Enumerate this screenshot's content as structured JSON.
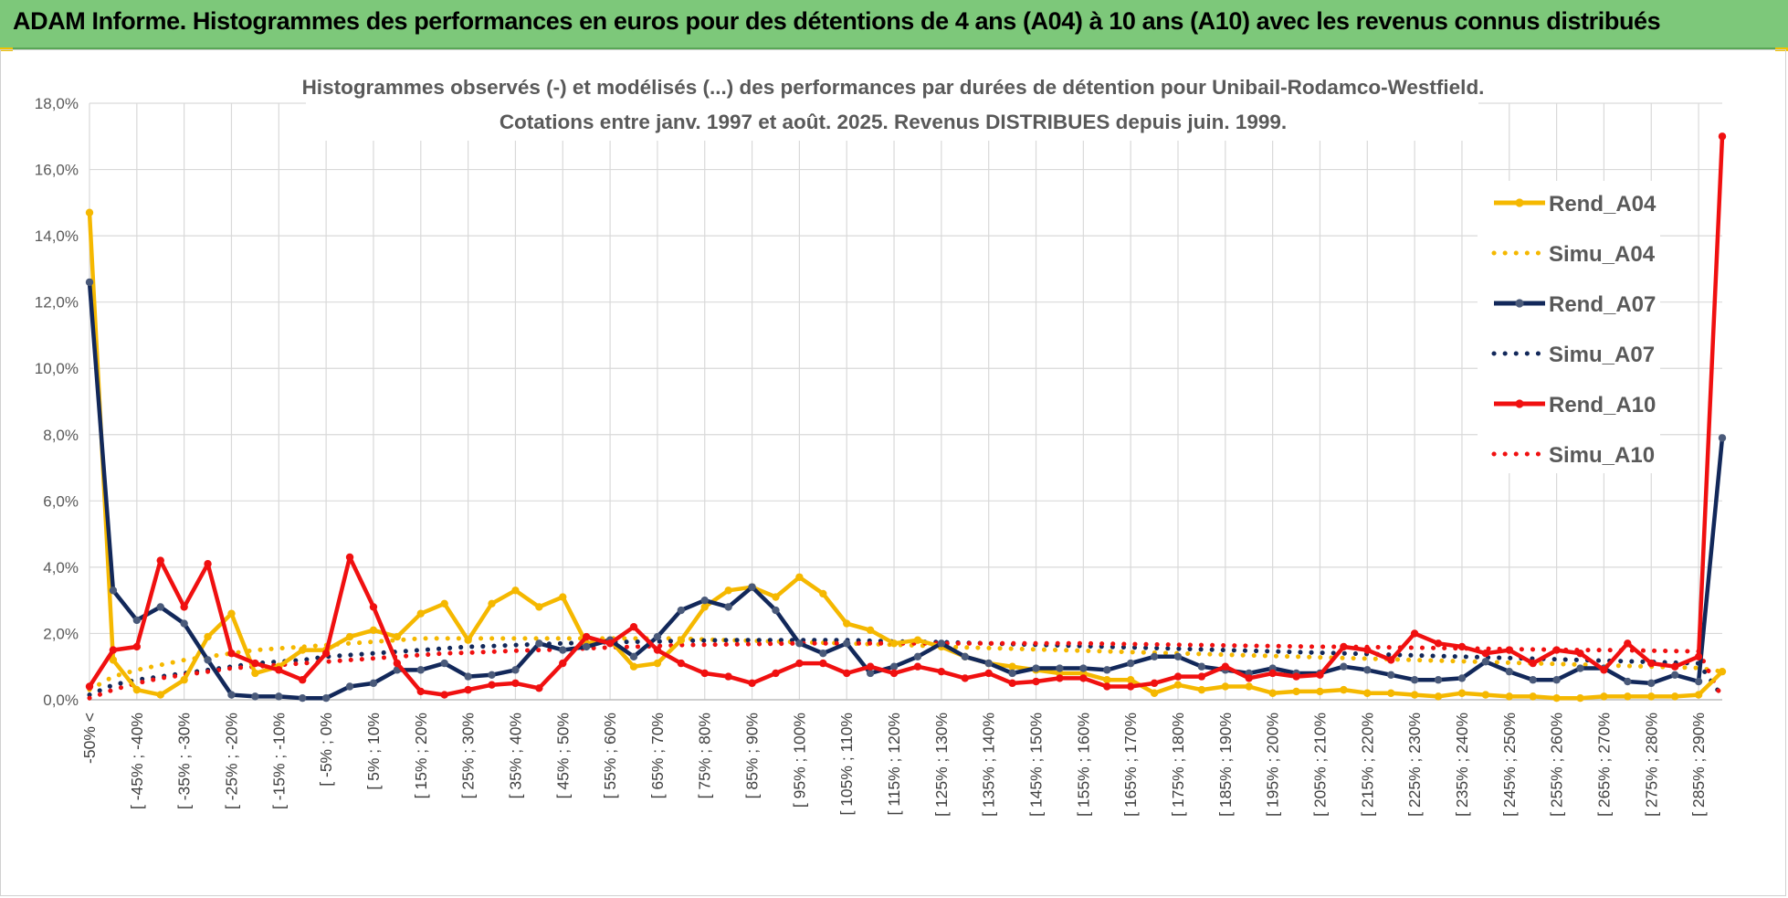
{
  "banner": {
    "title": "ADAM Informe. Histogrammes des performances en euros pour des détentions de 4 ans (A04) à 10 ans (A10) avec les revenus connus distribués"
  },
  "colors": {
    "banner_bg": "#7dc87a",
    "A04": "#f5b800",
    "A07": "#12285a",
    "A10": "#f01010",
    "grid": "#d9d9d9"
  },
  "chart_data": {
    "type": "line",
    "title_lines": [
      "Histogrammes observés (-) et modélisés (...) des performances par durées de détention pour Unibail-Rodamco-Westfield.",
      "Cotations entre janv. 1997 et août. 2025. Revenus DISTRIBUES depuis juin. 1999."
    ],
    "ylim": [
      0,
      18
    ],
    "yticks": [
      "0,0%",
      "2,0%",
      "4,0%",
      "6,0%",
      "8,0%",
      "10,0%",
      "12,0%",
      "14,0%",
      "16,0%",
      "18,0%"
    ],
    "xtick_labels": [
      "-50% <",
      "[ -45% ; -40%",
      "[ -35% ; -30%",
      "[ -25% ; -20%",
      "[ -15% ; -10%",
      "[ -5% ; 0%",
      "[ 5% ; 10%",
      "[ 15% ; 20%",
      "[ 25% ; 30%",
      "[ 35% ; 40%",
      "[ 45% ; 50%",
      "[ 55% ; 60%",
      "[ 65% ; 70%",
      "[ 75% ; 80%",
      "[ 85% ; 90%",
      "[ 95% ; 100%",
      "[ 105% ; 110%",
      "[ 115% ; 120%",
      "[ 125% ; 130%",
      "[ 135% ; 140%",
      "[ 145% ; 150%",
      "[ 155% ; 160%",
      "[ 165% ; 170%",
      "[ 175% ; 180%",
      "[ 185% ; 190%",
      "[ 195% ; 200%",
      "[ 205% ; 210%",
      "[ 215% ; 220%",
      "[ 225% ; 230%",
      "[ 235% ; 240%",
      "[ 245% ; 250%",
      "[ 255% ; 260%",
      "[ 265% ; 270%",
      "[ 275% ; 280%",
      "[ 285% ; 290%"
    ],
    "x_count": 70,
    "legend_position": "right",
    "grid": true,
    "series": [
      {
        "name": "Rend_A04",
        "style": "solid",
        "color": "#f5b800",
        "values": [
          14.7,
          1.2,
          0.3,
          0.15,
          0.6,
          1.9,
          2.6,
          0.8,
          1.0,
          1.5,
          1.5,
          1.9,
          2.1,
          1.9,
          2.6,
          2.9,
          1.8,
          2.9,
          3.3,
          2.8,
          3.1,
          1.7,
          1.8,
          1.0,
          1.1,
          1.8,
          2.8,
          3.3,
          3.4,
          3.1,
          3.7,
          3.2,
          2.3,
          2.1,
          1.7,
          1.8,
          1.6,
          1.3,
          1.1,
          1.0,
          0.9,
          0.8,
          0.8,
          0.6,
          0.6,
          0.2,
          0.45,
          0.3,
          0.4,
          0.4,
          0.2,
          0.25,
          0.25,
          0.3,
          0.2,
          0.2,
          0.15,
          0.1,
          0.2,
          0.15,
          0.1,
          0.1,
          0.05,
          0.05,
          0.1,
          0.1,
          0.1,
          0.1,
          0.15,
          0.85
        ]
      },
      {
        "name": "Simu_A04",
        "style": "dotted",
        "color": "#f5b800",
        "values": [
          0.3,
          0.7,
          0.9,
          1.05,
          1.2,
          1.3,
          1.4,
          1.5,
          1.55,
          1.6,
          1.65,
          1.7,
          1.75,
          1.8,
          1.85,
          1.85,
          1.85,
          1.85,
          1.85,
          1.85,
          1.85,
          1.85,
          1.85,
          1.85,
          1.85,
          1.85,
          1.82,
          1.8,
          1.78,
          1.76,
          1.74,
          1.72,
          1.7,
          1.68,
          1.66,
          1.64,
          1.6,
          1.58,
          1.56,
          1.54,
          1.52,
          1.5,
          1.48,
          1.46,
          1.44,
          1.42,
          1.4,
          1.38,
          1.36,
          1.34,
          1.32,
          1.3,
          1.28,
          1.26,
          1.24,
          1.22,
          1.2,
          1.18,
          1.16,
          1.14,
          1.12,
          1.1,
          1.08,
          1.06,
          1.04,
          1.02,
          1.0,
          0.98,
          0.96,
          0.85
        ]
      },
      {
        "name": "Rend_A07",
        "style": "solid",
        "color": "#12285a",
        "values": [
          12.6,
          3.3,
          2.4,
          2.8,
          2.3,
          1.2,
          0.15,
          0.1,
          0.1,
          0.05,
          0.05,
          0.4,
          0.5,
          0.9,
          0.9,
          1.1,
          0.7,
          0.75,
          0.9,
          1.7,
          1.5,
          1.6,
          1.8,
          1.3,
          1.9,
          2.7,
          3.0,
          2.8,
          3.4,
          2.7,
          1.7,
          1.4,
          1.7,
          0.8,
          1.0,
          1.3,
          1.7,
          1.3,
          1.1,
          0.8,
          0.95,
          0.95,
          0.95,
          0.9,
          1.1,
          1.3,
          1.3,
          1.0,
          0.9,
          0.8,
          0.95,
          0.8,
          0.8,
          1.0,
          0.9,
          0.75,
          0.6,
          0.6,
          0.65,
          1.15,
          0.85,
          0.6,
          0.6,
          0.95,
          0.95,
          0.55,
          0.5,
          0.75,
          0.55,
          7.9
        ]
      },
      {
        "name": "Simu_A07",
        "style": "dotted",
        "color": "#12285a",
        "values": [
          0.15,
          0.45,
          0.6,
          0.7,
          0.8,
          0.9,
          1.0,
          1.1,
          1.15,
          1.2,
          1.3,
          1.35,
          1.4,
          1.45,
          1.5,
          1.55,
          1.6,
          1.62,
          1.65,
          1.68,
          1.7,
          1.72,
          1.74,
          1.75,
          1.76,
          1.78,
          1.79,
          1.8,
          1.8,
          1.8,
          1.8,
          1.8,
          1.8,
          1.78,
          1.76,
          1.75,
          1.74,
          1.72,
          1.7,
          1.68,
          1.66,
          1.64,
          1.62,
          1.6,
          1.58,
          1.56,
          1.54,
          1.52,
          1.5,
          1.48,
          1.46,
          1.44,
          1.42,
          1.4,
          1.38,
          1.36,
          1.34,
          1.32,
          1.3,
          1.28,
          1.26,
          1.24,
          1.22,
          1.2,
          1.18,
          1.16,
          1.14,
          1.12,
          1.1,
          0.1
        ]
      },
      {
        "name": "Rend_A10",
        "style": "solid",
        "color": "#f01010",
        "values": [
          0.4,
          1.5,
          1.6,
          4.2,
          2.8,
          4.1,
          1.4,
          1.1,
          0.9,
          0.6,
          1.4,
          4.3,
          2.8,
          1.1,
          0.25,
          0.15,
          0.3,
          0.45,
          0.5,
          0.35,
          1.1,
          1.9,
          1.7,
          2.2,
          1.5,
          1.1,
          0.8,
          0.7,
          0.5,
          0.8,
          1.1,
          1.1,
          0.8,
          1.0,
          0.8,
          1.0,
          0.85,
          0.65,
          0.8,
          0.5,
          0.55,
          0.65,
          0.65,
          0.4,
          0.4,
          0.5,
          0.7,
          0.7,
          1.0,
          0.65,
          0.8,
          0.7,
          0.75,
          1.6,
          1.5,
          1.2,
          2.0,
          1.7,
          1.6,
          1.4,
          1.5,
          1.1,
          1.5,
          1.4,
          0.9,
          1.7,
          1.1,
          1.0,
          1.3,
          17.0
        ]
      },
      {
        "name": "Simu_A10",
        "style": "dotted",
        "color": "#f01010",
        "values": [
          0.05,
          0.3,
          0.5,
          0.65,
          0.75,
          0.85,
          0.95,
          1.0,
          1.05,
          1.1,
          1.15,
          1.2,
          1.25,
          1.3,
          1.35,
          1.4,
          1.42,
          1.45,
          1.48,
          1.5,
          1.52,
          1.55,
          1.58,
          1.6,
          1.62,
          1.65,
          1.66,
          1.67,
          1.68,
          1.69,
          1.7,
          1.7,
          1.7,
          1.7,
          1.7,
          1.7,
          1.7,
          1.7,
          1.7,
          1.7,
          1.7,
          1.7,
          1.7,
          1.69,
          1.68,
          1.67,
          1.66,
          1.65,
          1.64,
          1.63,
          1.62,
          1.61,
          1.6,
          1.6,
          1.59,
          1.58,
          1.57,
          1.56,
          1.55,
          1.54,
          1.53,
          1.52,
          1.51,
          1.5,
          1.5,
          1.49,
          1.48,
          1.47,
          1.46,
          0.05
        ]
      }
    ]
  }
}
